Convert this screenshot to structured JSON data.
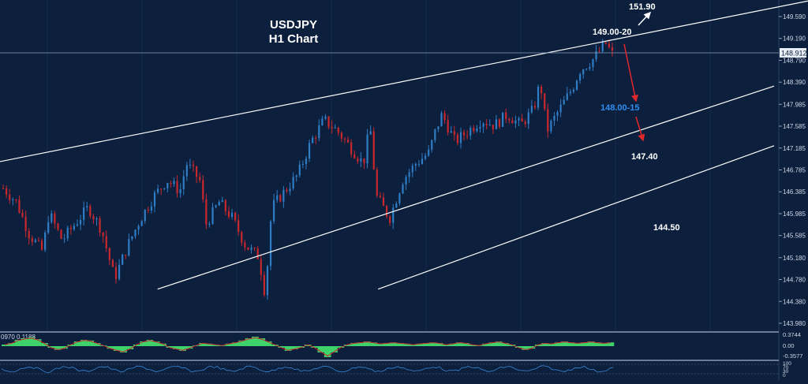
{
  "chart_data": {
    "type": "candlestick",
    "title": "USDJPY",
    "subtitle": "H1 Chart",
    "symbol": "USDJPY",
    "timeframe": "H1",
    "current_price": "148.912",
    "y_ticks": [
      "149.590",
      "149.190",
      "148.790",
      "148.390",
      "147.985",
      "147.585",
      "147.185",
      "146.785",
      "146.385",
      "145.985",
      "145.585",
      "145.180",
      "144.780",
      "144.380",
      "143.980"
    ],
    "ylim": [
      143.9,
      149.8
    ],
    "price_path": [
      [
        0,
        146.45
      ],
      [
        2,
        146.2
      ],
      [
        4,
        145.6
      ],
      [
        6,
        145.3
      ],
      [
        7,
        146.0
      ],
      [
        9,
        145.5
      ],
      [
        11,
        145.8
      ],
      [
        13,
        146.1
      ],
      [
        15,
        145.7
      ],
      [
        17,
        144.8
      ],
      [
        19,
        145.4
      ],
      [
        21,
        145.9
      ],
      [
        23,
        146.3
      ],
      [
        25,
        146.6
      ],
      [
        27,
        146.4
      ],
      [
        28,
        146.9
      ],
      [
        30,
        146.6
      ],
      [
        31,
        145.8
      ],
      [
        33,
        146.2
      ],
      [
        35,
        145.9
      ],
      [
        37,
        145.4
      ],
      [
        39,
        145.2
      ],
      [
        40,
        144.5
      ],
      [
        41,
        146.1
      ],
      [
        43,
        146.4
      ],
      [
        45,
        146.7
      ],
      [
        47,
        147.3
      ],
      [
        49,
        147.7
      ],
      [
        51,
        147.5
      ],
      [
        53,
        147.2
      ],
      [
        55,
        146.9
      ],
      [
        56,
        147.6
      ],
      [
        57,
        146.3
      ],
      [
        59,
        145.9
      ],
      [
        61,
        146.6
      ],
      [
        63,
        146.9
      ],
      [
        65,
        147.1
      ],
      [
        66,
        147.5
      ],
      [
        67,
        147.8
      ],
      [
        69,
        147.3
      ],
      [
        71,
        147.5
      ],
      [
        73,
        147.7
      ],
      [
        75,
        147.6
      ],
      [
        77,
        147.8
      ],
      [
        79,
        147.6
      ],
      [
        81,
        147.9
      ],
      [
        82,
        148.4
      ],
      [
        83,
        147.5
      ],
      [
        85,
        147.9
      ],
      [
        87,
        148.3
      ],
      [
        88,
        148.6
      ],
      [
        90,
        148.8
      ],
      [
        92,
        149.1
      ],
      [
        93,
        148.9
      ]
    ],
    "indicators": [
      {
        "name": "MACD",
        "label": "0970 0.1188",
        "ticks": [
          "0.3744",
          "0.00",
          "-0.3577"
        ],
        "values": [
          0.05,
          0.1,
          0.2,
          0.25,
          0.28,
          0.22,
          0.1,
          -0.05,
          -0.12,
          -0.08,
          0.05,
          0.15,
          0.2,
          0.18,
          0.1,
          0.02,
          -0.08,
          -0.15,
          -0.2,
          -0.1,
          0.05,
          0.15,
          0.2,
          0.15,
          0.08,
          -0.05,
          -0.1,
          -0.15,
          -0.08,
          0.02,
          0.1,
          0.08,
          0.05,
          0.02,
          0.08,
          0.12,
          0.18,
          0.25,
          0.3,
          0.25,
          0.15,
          0.05,
          -0.05,
          -0.15,
          -0.1,
          -0.05,
          0.05,
          -0.05,
          -0.2,
          -0.35,
          -0.2,
          -0.05,
          0.05,
          0.1,
          0.12,
          0.15,
          0.12,
          0.08,
          0.1,
          0.12,
          0.1,
          0.08,
          0.05,
          0.08,
          0.1,
          0.12,
          0.1,
          0.05,
          0.08,
          0.12,
          0.1,
          0.05,
          0.02,
          0.08,
          0.12,
          0.15,
          0.1,
          0.05,
          -0.05,
          -0.12,
          -0.08,
          0.05,
          0.1,
          0.08,
          0.12,
          0.15,
          0.12,
          0.1,
          0.12,
          0.15,
          0.12,
          0.1,
          0.12
        ]
      },
      {
        "name": "Oscillator",
        "ticks": [
          "100",
          "70",
          "30",
          "0"
        ]
      }
    ],
    "trendlines": [
      {
        "from": [
          0,
          0.488
        ],
        "to": [
          1,
          0.003
        ]
      },
      {
        "from": [
          0.195,
          0.873
        ],
        "to": [
          0.958,
          0.26
        ]
      },
      {
        "from": [
          0.468,
          0.873
        ],
        "to": [
          0.958,
          0.44
        ]
      }
    ],
    "annotations": {
      "resistance_target": "151.90",
      "resistance_zone": "149.00-20",
      "support_zone": "148.00-15",
      "support_1": "147.40",
      "support_2": "144.50"
    }
  },
  "colors": {
    "background": "#0c1f3d",
    "candle_up": "#2f7dc4",
    "candle_down": "#c8282c",
    "macd_histogram": "#3fd16a",
    "accent_blue": "#2e8ff0",
    "arrow_red": "#e0282c"
  }
}
